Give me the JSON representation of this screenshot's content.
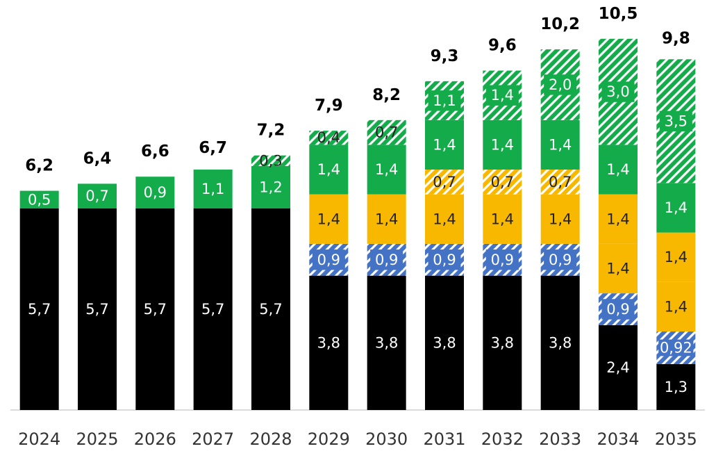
{
  "chart_data": {
    "type": "stacked-bar",
    "categories": [
      "2024",
      "2025",
      "2026",
      "2027",
      "2028",
      "2029",
      "2030",
      "2031",
      "2032",
      "2033",
      "2034",
      "2035"
    ],
    "ylim": [
      0,
      11.4
    ],
    "series": [
      {
        "color": "#000000",
        "hatch": false,
        "values": [
          5.7,
          5.7,
          5.7,
          5.7,
          5.7,
          3.8,
          3.8,
          3.8,
          3.8,
          3.8,
          2.4,
          1.3
        ],
        "value_labels": [
          "5,7",
          "5,7",
          "5,7",
          "5,7",
          "5,7",
          "3,8",
          "3,8",
          "3,8",
          "3,8",
          "3,8",
          "2,4",
          "1,3"
        ]
      },
      {
        "color": "#4472c4",
        "hatch": true,
        "values": [
          null,
          null,
          null,
          null,
          null,
          0.9,
          0.9,
          0.9,
          0.9,
          0.9,
          0.9,
          0.92
        ],
        "value_labels": [
          null,
          null,
          null,
          null,
          null,
          "0,9",
          "0,9",
          "0,9",
          "0,9",
          "0,9",
          "0,9",
          "0,92"
        ]
      },
      {
        "color": "#f9b800",
        "hatch": false,
        "values": [
          null,
          null,
          null,
          null,
          null,
          1.4,
          1.4,
          1.4,
          1.4,
          1.4,
          1.4,
          1.4
        ],
        "value_labels": [
          null,
          null,
          null,
          null,
          null,
          "1,4",
          "1,4",
          "1,4",
          "1,4",
          "1,4",
          "1,4",
          "1,4"
        ]
      },
      {
        "color": "#f9b800",
        "hatch": true,
        "values": [
          null,
          null,
          null,
          null,
          null,
          null,
          null,
          0.7,
          0.7,
          0.7,
          null,
          null
        ],
        "value_labels": [
          null,
          null,
          null,
          null,
          null,
          null,
          null,
          "0,7",
          "0,7",
          "0,7",
          null,
          null
        ]
      },
      {
        "color": "#f9b800",
        "hatch": false,
        "values": [
          null,
          null,
          null,
          null,
          null,
          null,
          null,
          null,
          null,
          null,
          1.4,
          1.4
        ],
        "value_labels": [
          null,
          null,
          null,
          null,
          null,
          null,
          null,
          null,
          null,
          null,
          "1,4",
          "1,4"
        ]
      },
      {
        "color": "#14ac4b",
        "hatch": false,
        "values": [
          0.5,
          0.7,
          0.9,
          1.1,
          1.2,
          1.4,
          1.4,
          1.4,
          1.4,
          1.4,
          1.4,
          1.4
        ],
        "value_labels": [
          "0,5",
          "0,7",
          "0,9",
          "1,1",
          "1,2",
          "1,4",
          "1,4",
          "1,4",
          "1,4",
          "1,4",
          "1,4",
          "1,4"
        ]
      },
      {
        "color": "#14ac4b",
        "hatch": true,
        "values": [
          null,
          null,
          null,
          null,
          0.3,
          0.4,
          0.7,
          1.1,
          1.4,
          2.0,
          3.0,
          3.5
        ],
        "value_labels": [
          null,
          null,
          null,
          null,
          "0,3",
          "0,4",
          "0,7",
          "1,1",
          "1,4",
          "2,0",
          "3,0",
          "3,5"
        ]
      }
    ],
    "totals": {
      "values": [
        6.2,
        6.4,
        6.6,
        6.7,
        7.2,
        7.9,
        8.2,
        9.3,
        9.6,
        10.2,
        10.5,
        9.8
      ],
      "value_labels": [
        "6,2",
        "6,4",
        "6,6",
        "6,7",
        "7,2",
        "7,9",
        "8,2",
        "9,3",
        "9,6",
        "10,2",
        "10,5",
        "9,8"
      ]
    }
  }
}
